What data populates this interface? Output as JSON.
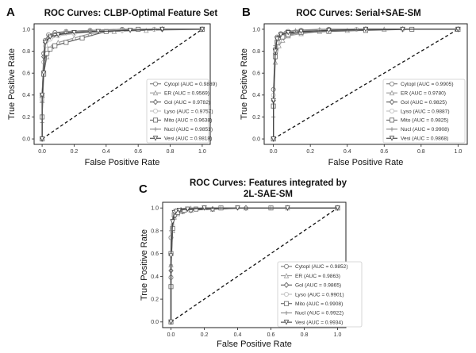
{
  "chart_data": [
    {
      "panel": "A",
      "type": "line",
      "title": "ROC Curves: CLBP-Optimal Feature Set",
      "title_lines": [
        "ROC Curves: CLBP-Optimal Feature Set"
      ],
      "xlabel": "False Positive Rate",
      "ylabel": "True Positive Rate",
      "xlim": [
        0,
        1
      ],
      "ylim": [
        0,
        1
      ],
      "xticks": [
        "0.0",
        "0.2",
        "0.4",
        "0.6",
        "0.8",
        "1.0"
      ],
      "yticks": [
        "0.0",
        "0.2",
        "0.4",
        "0.6",
        "0.8",
        "1.0"
      ],
      "grid": false,
      "legend_position": "lower-right",
      "diagonal": {
        "x": [
          0,
          1
        ],
        "y": [
          0,
          1
        ],
        "style": "dashed"
      },
      "series": [
        {
          "name": "Cytopl",
          "auc": "0.9839",
          "legend": "Cytopl (AUC = 0.9839)",
          "marker": "circle",
          "color": "#777777",
          "x": [
            0,
            0,
            0.01,
            0.02,
            0.04,
            0.08,
            0.15,
            0.3,
            0.5,
            0.7,
            1
          ],
          "y": [
            0,
            0.4,
            0.78,
            0.9,
            0.95,
            0.97,
            0.98,
            0.99,
            1,
            1,
            1
          ]
        },
        {
          "name": "ER",
          "auc": "0.9569",
          "legend": "ER (AUC = 0.9569)",
          "marker": "triangle-up",
          "color": "#999999",
          "x": [
            0,
            0,
            0.01,
            0.03,
            0.06,
            0.1,
            0.2,
            0.3,
            0.45,
            0.65,
            1
          ],
          "y": [
            0,
            0.35,
            0.6,
            0.75,
            0.84,
            0.88,
            0.92,
            0.96,
            0.98,
            0.99,
            1
          ]
        },
        {
          "name": "Gol",
          "auc": "0.9782",
          "legend": "Gol (AUC = 0.9782)",
          "marker": "diamond",
          "color": "#555555",
          "x": [
            0,
            0,
            0.01,
            0.02,
            0.04,
            0.08,
            0.15,
            0.3,
            0.5,
            0.75,
            1
          ],
          "y": [
            0,
            0.38,
            0.75,
            0.88,
            0.92,
            0.95,
            0.97,
            0.98,
            0.99,
            1,
            1
          ]
        },
        {
          "name": "Lyso",
          "auc": "0.9757",
          "legend": "Lyso (AUC = 0.9757)",
          "marker": "circle",
          "color": "#bbbbbb",
          "x": [
            0,
            0,
            0.01,
            0.02,
            0.05,
            0.1,
            0.2,
            0.35,
            0.5,
            0.7,
            1
          ],
          "y": [
            0,
            0.36,
            0.7,
            0.85,
            0.91,
            0.94,
            0.96,
            0.98,
            0.99,
            1,
            1
          ]
        },
        {
          "name": "Mito",
          "auc": "0.9638",
          "legend": "Mito (AUC = 0.9638)",
          "marker": "square",
          "color": "#666666",
          "x": [
            0,
            0,
            0.01,
            0.03,
            0.05,
            0.08,
            0.15,
            0.25,
            0.4,
            0.6,
            1
          ],
          "y": [
            0,
            0.2,
            0.59,
            0.78,
            0.82,
            0.85,
            0.88,
            0.92,
            0.98,
            1,
            1
          ]
        },
        {
          "name": "Nucl",
          "auc": "0.9851",
          "legend": "Nucl (AUC = 0.9851)",
          "marker": "plus",
          "color": "#888888",
          "x": [
            0,
            0,
            0.01,
            0.02,
            0.04,
            0.07,
            0.15,
            0.3,
            0.5,
            0.7,
            1
          ],
          "y": [
            0,
            0.15,
            0.79,
            0.9,
            0.94,
            0.96,
            0.98,
            0.99,
            1,
            1,
            1
          ]
        },
        {
          "name": "Vesi",
          "auc": "0.9818",
          "legend": "Vesi (AUC = 0.9818)",
          "marker": "triangle-down",
          "color": "#444444",
          "x": [
            0,
            0,
            0.01,
            0.02,
            0.05,
            0.1,
            0.2,
            0.35,
            0.55,
            0.75,
            1
          ],
          "y": [
            0,
            0.4,
            0.6,
            0.88,
            0.93,
            0.95,
            0.97,
            0.98,
            0.99,
            1,
            1
          ]
        }
      ]
    },
    {
      "panel": "B",
      "type": "line",
      "title": "ROC Curves: Serial+SAE-SM",
      "title_lines": [
        "ROC Curves: Serial+SAE-SM"
      ],
      "xlabel": "False Positive Rate",
      "ylabel": "True Positive Rate",
      "xlim": [
        0,
        1
      ],
      "ylim": [
        0,
        1
      ],
      "xticks": [
        "0.0",
        "0.2",
        "0.4",
        "0.6",
        "0.8",
        "1.0"
      ],
      "yticks": [
        "0.0",
        "0.2",
        "0.4",
        "0.6",
        "0.8",
        "1.0"
      ],
      "grid": false,
      "legend_position": "lower-right",
      "diagonal": {
        "x": [
          0,
          1
        ],
        "y": [
          0,
          1
        ],
        "style": "dashed"
      },
      "series": [
        {
          "name": "Cytopl",
          "auc": "0.9905",
          "legend": "Cytopl (AUC = 0.9905)",
          "marker": "circle",
          "color": "#777777",
          "x": [
            0,
            0,
            0.01,
            0.02,
            0.04,
            0.08,
            0.15,
            0.3,
            0.5,
            0.7,
            1
          ],
          "y": [
            0,
            0.45,
            0.82,
            0.93,
            0.96,
            0.98,
            0.99,
            1,
            1,
            1,
            1
          ]
        },
        {
          "name": "ER",
          "auc": "0.9780",
          "legend": "ER (AUC = 0.9780)",
          "marker": "triangle-up",
          "color": "#999999",
          "x": [
            0,
            0,
            0.01,
            0.03,
            0.05,
            0.08,
            0.15,
            0.25,
            0.4,
            0.6,
            1
          ],
          "y": [
            0,
            0.3,
            0.7,
            0.85,
            0.9,
            0.94,
            0.96,
            0.98,
            0.99,
            1,
            1
          ]
        },
        {
          "name": "Gol",
          "auc": "0.9825",
          "legend": "Gol (AUC = 0.9825)",
          "marker": "diamond",
          "color": "#555555",
          "x": [
            0,
            0,
            0.01,
            0.02,
            0.04,
            0.08,
            0.15,
            0.3,
            0.5,
            0.7,
            1
          ],
          "y": [
            0,
            0.35,
            0.78,
            0.9,
            0.94,
            0.96,
            0.98,
            0.99,
            1,
            1,
            1
          ]
        },
        {
          "name": "Lyso",
          "auc": "0.9887",
          "legend": "Lyso (AUC = 0.9887)",
          "marker": "circle",
          "color": "#bbbbbb",
          "x": [
            0,
            0,
            0.01,
            0.02,
            0.04,
            0.07,
            0.12,
            0.25,
            0.45,
            0.7,
            1
          ],
          "y": [
            0,
            0.4,
            0.8,
            0.92,
            0.95,
            0.97,
            0.98,
            0.99,
            1,
            1,
            1
          ]
        },
        {
          "name": "Mito",
          "auc": "0.9825",
          "legend": "Mito (AUC = 0.9825)",
          "marker": "square",
          "color": "#666666",
          "x": [
            0,
            0,
            0.01,
            0.02,
            0.05,
            0.08,
            0.15,
            0.3,
            0.5,
            0.75,
            1
          ],
          "y": [
            0,
            0.3,
            0.75,
            0.88,
            0.93,
            0.95,
            0.97,
            0.98,
            0.99,
            1,
            1
          ]
        },
        {
          "name": "Nucl",
          "auc": "0.9908",
          "legend": "Nucl (AUC = 0.9908)",
          "marker": "plus",
          "color": "#888888",
          "x": [
            0,
            0,
            0.01,
            0.02,
            0.04,
            0.07,
            0.12,
            0.25,
            0.45,
            0.7,
            1
          ],
          "y": [
            0,
            0.2,
            0.85,
            0.93,
            0.96,
            0.98,
            0.99,
            1,
            1,
            1,
            1
          ]
        },
        {
          "name": "Vesi",
          "auc": "0.9868",
          "legend": "Vesi (AUC = 0.9868)",
          "marker": "triangle-down",
          "color": "#444444",
          "x": [
            0,
            0,
            0.01,
            0.02,
            0.04,
            0.08,
            0.15,
            0.3,
            0.5,
            0.7,
            1
          ],
          "y": [
            0,
            0.35,
            0.8,
            0.91,
            0.95,
            0.97,
            0.98,
            0.99,
            1,
            1,
            1
          ]
        }
      ]
    },
    {
      "panel": "C",
      "type": "line",
      "title": "ROC Curves: Features integrated by 2L-SAE-SM",
      "title_lines": [
        "ROC Curves: Features integrated by",
        "2L-SAE-SM"
      ],
      "xlabel": "False Positive Rate",
      "ylabel": "True Positive Rate",
      "xlim": [
        0,
        1
      ],
      "ylim": [
        0,
        1
      ],
      "xticks": [
        "0.0",
        "0.2",
        "0.4",
        "0.6",
        "0.8",
        "1.0"
      ],
      "yticks": [
        "0.0",
        "0.2",
        "0.4",
        "0.6",
        "0.8",
        "1.0"
      ],
      "grid": false,
      "legend_position": "lower-right",
      "diagonal": {
        "x": [
          0,
          1
        ],
        "y": [
          0,
          1
        ],
        "style": "dashed"
      },
      "series": [
        {
          "name": "Cytopl",
          "auc": "0.9852",
          "legend": "Cytopl (AUC = 0.9852)",
          "marker": "circle",
          "color": "#777777",
          "x": [
            0,
            0,
            0,
            0.01,
            0.02,
            0.04,
            0.08,
            0.15,
            0.3,
            0.6,
            1
          ],
          "y": [
            0,
            0.39,
            0.74,
            0.82,
            0.93,
            0.96,
            0.98,
            0.99,
            1,
            1,
            1
          ]
        },
        {
          "name": "ER",
          "auc": "0.9863",
          "legend": "ER (AUC = 0.9863)",
          "marker": "triangle-up",
          "color": "#999999",
          "x": [
            0,
            0,
            0.01,
            0.02,
            0.04,
            0.07,
            0.12,
            0.25,
            0.45,
            0.7,
            1
          ],
          "y": [
            0,
            0.5,
            0.8,
            0.92,
            0.95,
            0.97,
            0.98,
            0.99,
            1,
            1,
            1
          ]
        },
        {
          "name": "Gol",
          "auc": "0.9865",
          "legend": "Gol (AUC = 0.9865)",
          "marker": "diamond",
          "color": "#555555",
          "x": [
            0,
            0,
            0.01,
            0.02,
            0.04,
            0.07,
            0.12,
            0.25,
            0.45,
            0.7,
            1
          ],
          "y": [
            0,
            0.45,
            0.82,
            0.93,
            0.96,
            0.97,
            0.98,
            0.99,
            1,
            1,
            1
          ]
        },
        {
          "name": "Lyso",
          "auc": "0.9901",
          "legend": "Lyso (AUC = 0.9901)",
          "marker": "circle",
          "color": "#bbbbbb",
          "x": [
            0,
            0,
            0.01,
            0.02,
            0.03,
            0.06,
            0.1,
            0.2,
            0.4,
            0.7,
            1
          ],
          "y": [
            0,
            0.6,
            0.85,
            0.95,
            0.97,
            0.98,
            0.99,
            1,
            1,
            1,
            1
          ]
        },
        {
          "name": "Mito",
          "auc": "0.9908",
          "legend": "Mito (AUC = 0.9908)",
          "marker": "square",
          "color": "#666666",
          "x": [
            0,
            0,
            0,
            0.01,
            0.02,
            0.04,
            0.08,
            0.15,
            0.3,
            0.6,
            1
          ],
          "y": [
            0,
            0.31,
            0.6,
            0.82,
            0.94,
            0.96,
            0.98,
            0.99,
            1,
            1,
            1
          ]
        },
        {
          "name": "Nucl",
          "auc": "0.9922",
          "legend": "Nucl (AUC = 0.9922)",
          "marker": "plus",
          "color": "#888888",
          "x": [
            0,
            0,
            0,
            0.01,
            0.02,
            0.03,
            0.06,
            0.12,
            0.3,
            0.6,
            1
          ],
          "y": [
            0,
            0.5,
            0.8,
            0.9,
            0.96,
            0.98,
            0.99,
            1,
            1,
            1,
            1
          ]
        },
        {
          "name": "Vesi",
          "auc": "0.9934",
          "legend": "Vesi (AUC = 0.9934)",
          "marker": "triangle-down",
          "color": "#444444",
          "x": [
            0,
            0,
            0.01,
            0.02,
            0.03,
            0.05,
            0.1,
            0.2,
            0.4,
            0.7,
            1
          ],
          "y": [
            0,
            0.58,
            0.88,
            0.96,
            0.97,
            0.98,
            0.99,
            1,
            1,
            1,
            1
          ]
        }
      ]
    }
  ]
}
